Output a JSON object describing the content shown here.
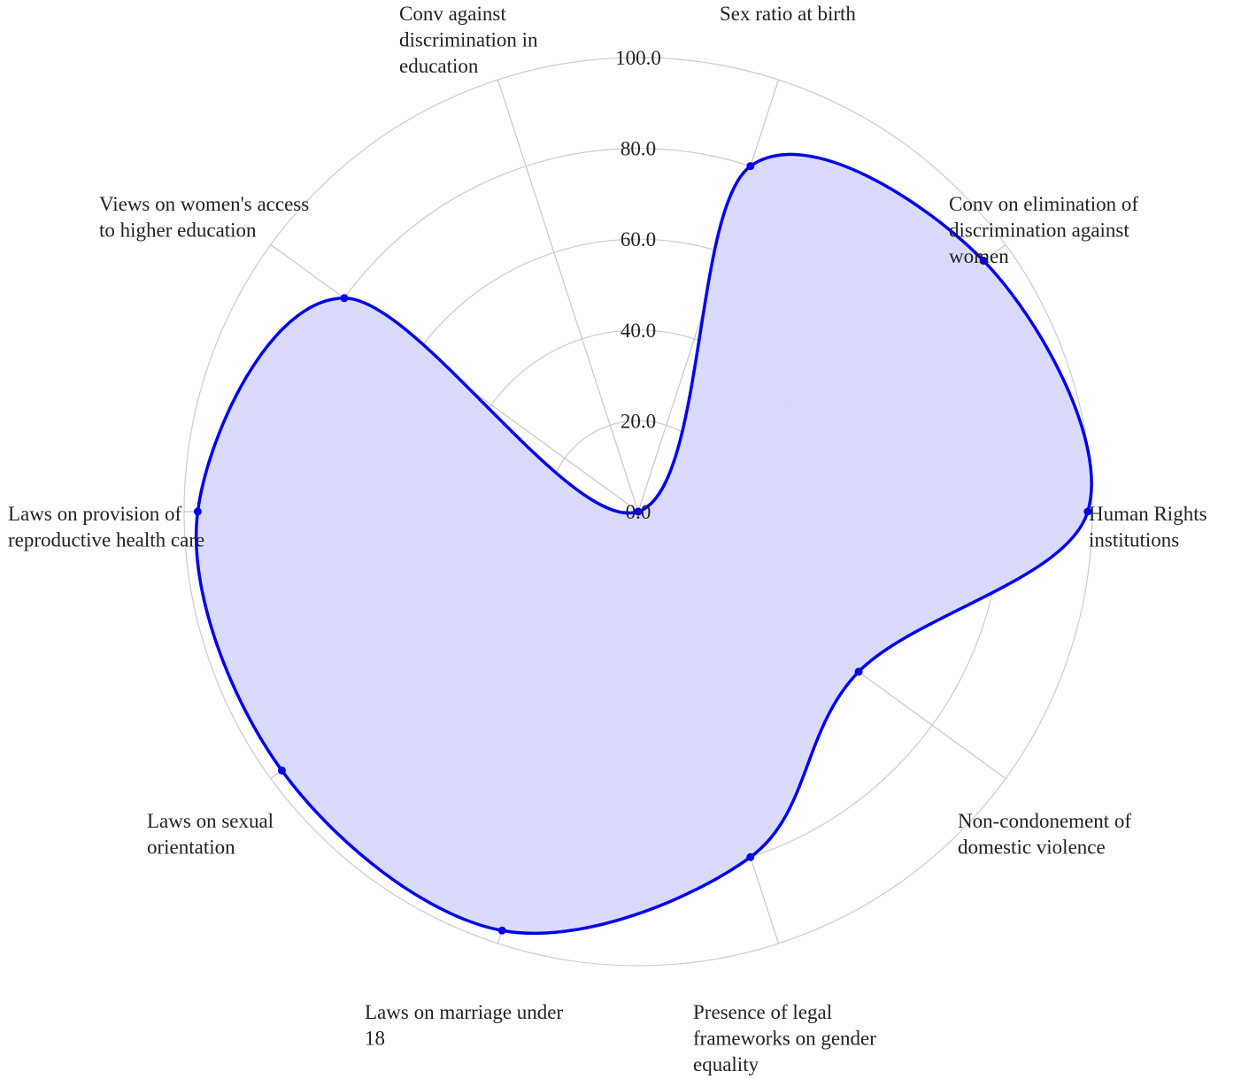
{
  "chart_data": {
    "type": "radar",
    "title": "",
    "series": [
      {
        "values": [
          80,
          94,
          99,
          60,
          80,
          97,
          97,
          97,
          80,
          0
        ]
      }
    ],
    "categories": [
      "Sex ratio at birth",
      "Conv on elimination of discrimination against women",
      "Human Rights institutions",
      "Non-condonement of domestic violence",
      "Presence of legal frameworks on gender equality",
      "Laws on marriage under 18",
      "Laws on sexual orientation",
      "Laws on provision of reproductive health care",
      "Views on women's access to higher education",
      "Conv against discrimination in education"
    ],
    "category_lines": [
      [
        "Sex ratio at birth"
      ],
      [
        "Conv on elimination of",
        "discrimination against",
        "women"
      ],
      [
        "Human Rights",
        "institutions"
      ],
      [
        "Non-condonement of",
        "domestic violence"
      ],
      [
        "Presence of legal",
        "frameworks on gender",
        "equality"
      ],
      [
        "Laws on marriage under",
        "18"
      ],
      [
        "Laws on sexual",
        "orientation"
      ],
      [
        "Laws on provision of",
        "reproductive health care"
      ],
      [
        "Views on women's access",
        "to higher education"
      ],
      [
        "Conv against",
        "discrimination in",
        "education"
      ]
    ],
    "radial_ticks": [
      "0.0",
      "20.0",
      "40.0",
      "60.0",
      "80.0",
      "100.0"
    ],
    "r_range": [
      0,
      100
    ],
    "grid": true,
    "legend": "none",
    "colors": {
      "line": "#0000ee",
      "fill": "#d8d8fc",
      "grid": "#cccccc",
      "text": "#222222"
    }
  }
}
